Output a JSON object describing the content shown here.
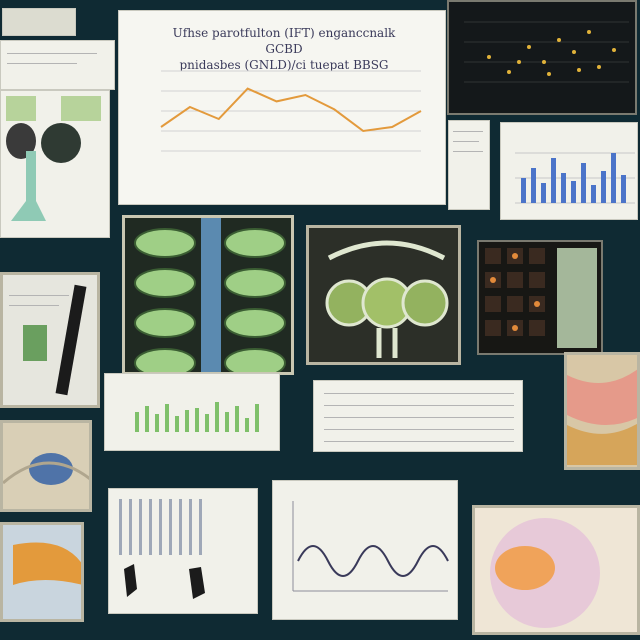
{
  "main_chart": {
    "title_line1": "Ufhse parotfulton (IFT) enganccnalk GCBD",
    "title_line2": "pnidasbes (GNLD)/ci tuepat BBSG"
  },
  "chart_data": {
    "type": "line",
    "x": [
      1,
      2,
      3,
      4,
      5,
      6,
      7,
      8,
      9,
      10
    ],
    "values": [
      30,
      55,
      40,
      78,
      62,
      70,
      52,
      25,
      30,
      50
    ],
    "ylim": [
      0,
      100
    ],
    "grid": true,
    "color": "#e39a3c"
  },
  "colors": {
    "background": "#0f2a33",
    "paper": "#f1f1ea",
    "accent_green": "#8cbf72",
    "accent_blue": "#4b74c9",
    "accent_orange": "#e39a3c"
  }
}
